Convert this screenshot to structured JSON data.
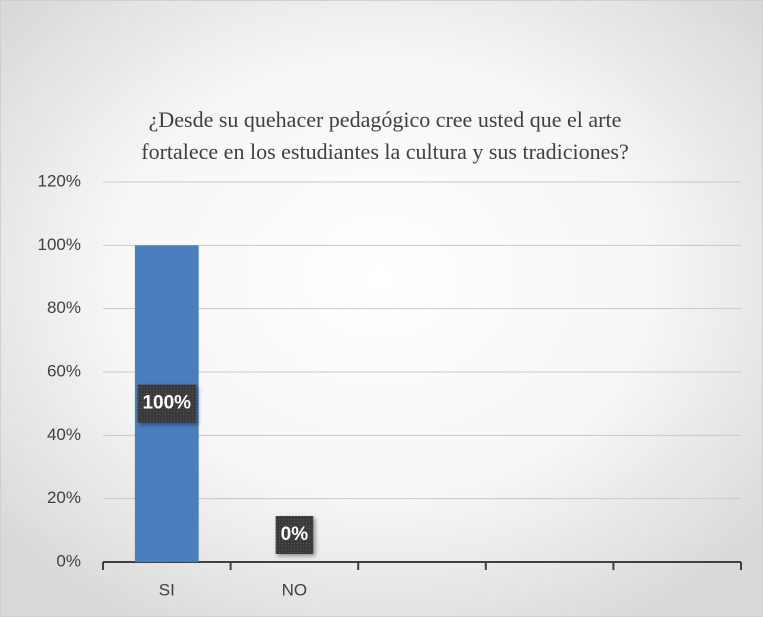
{
  "chart_data": {
    "type": "bar",
    "title": [
      "¿Desde su quehacer pedagógico cree usted que el arte",
      "fortalece en los estudiantes la cultura y sus tradiciones?"
    ],
    "categories": [
      "SI",
      "NO",
      null,
      null,
      null
    ],
    "values": [
      100,
      0,
      null,
      null,
      null
    ],
    "value_labels": [
      "100%",
      "0%",
      null,
      null,
      null
    ],
    "color": "#4a7ebf",
    "ylim": [
      0,
      120
    ],
    "yticks": [
      {
        "value": 0,
        "label": "0%"
      },
      {
        "value": 20,
        "label": "20%"
      },
      {
        "value": 40,
        "label": "40%"
      },
      {
        "value": 60,
        "label": "60%"
      },
      {
        "value": 80,
        "label": "80%"
      },
      {
        "value": 100,
        "label": "100%"
      },
      {
        "value": 120,
        "label": "120%"
      }
    ],
    "grid": true
  }
}
